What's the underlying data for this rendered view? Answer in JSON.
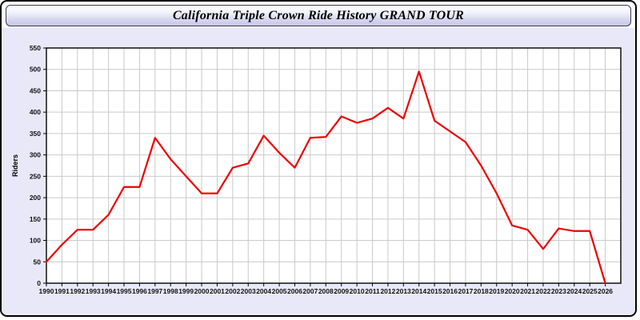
{
  "header": {
    "title": "California Triple Crown Ride History GRAND TOUR"
  },
  "colors": {
    "line": "#ee0000",
    "panel_background": "#e8e8f8",
    "plot_background": "#ffffff",
    "gridline": "#c9c9c9",
    "frame": "#000000",
    "tick_label": "#111111",
    "titlebar_top": "#ffffff",
    "titlebar_bottom": "#c7c7e6"
  },
  "chart_data": {
    "type": "line",
    "title": "California Triple Crown Ride History GRAND TOUR",
    "xlabel": "",
    "ylabel": "Riders",
    "ylim": [
      0,
      550
    ],
    "ytick_step": 50,
    "grid": true,
    "legend_position": "none",
    "categories": [
      1990,
      1991,
      1992,
      1993,
      1994,
      1995,
      1996,
      1997,
      1998,
      1999,
      2000,
      2001,
      2002,
      2003,
      2004,
      2005,
      2006,
      2007,
      2008,
      2009,
      2010,
      2011,
      2012,
      2013,
      2014,
      2015,
      2016,
      2017,
      2018,
      2019,
      2020,
      2021,
      2022,
      2023,
      2024,
      2025,
      2026
    ],
    "series": [
      {
        "name": "Riders",
        "color": "#ee0000",
        "values": [
          50,
          90,
          125,
          125,
          160,
          225,
          225,
          340,
          290,
          250,
          210,
          210,
          270,
          280,
          345,
          305,
          270,
          340,
          342,
          390,
          375,
          385,
          410,
          385,
          495,
          380,
          355,
          330,
          275,
          210,
          135,
          125,
          80,
          128,
          122,
          122,
          0
        ]
      }
    ]
  }
}
